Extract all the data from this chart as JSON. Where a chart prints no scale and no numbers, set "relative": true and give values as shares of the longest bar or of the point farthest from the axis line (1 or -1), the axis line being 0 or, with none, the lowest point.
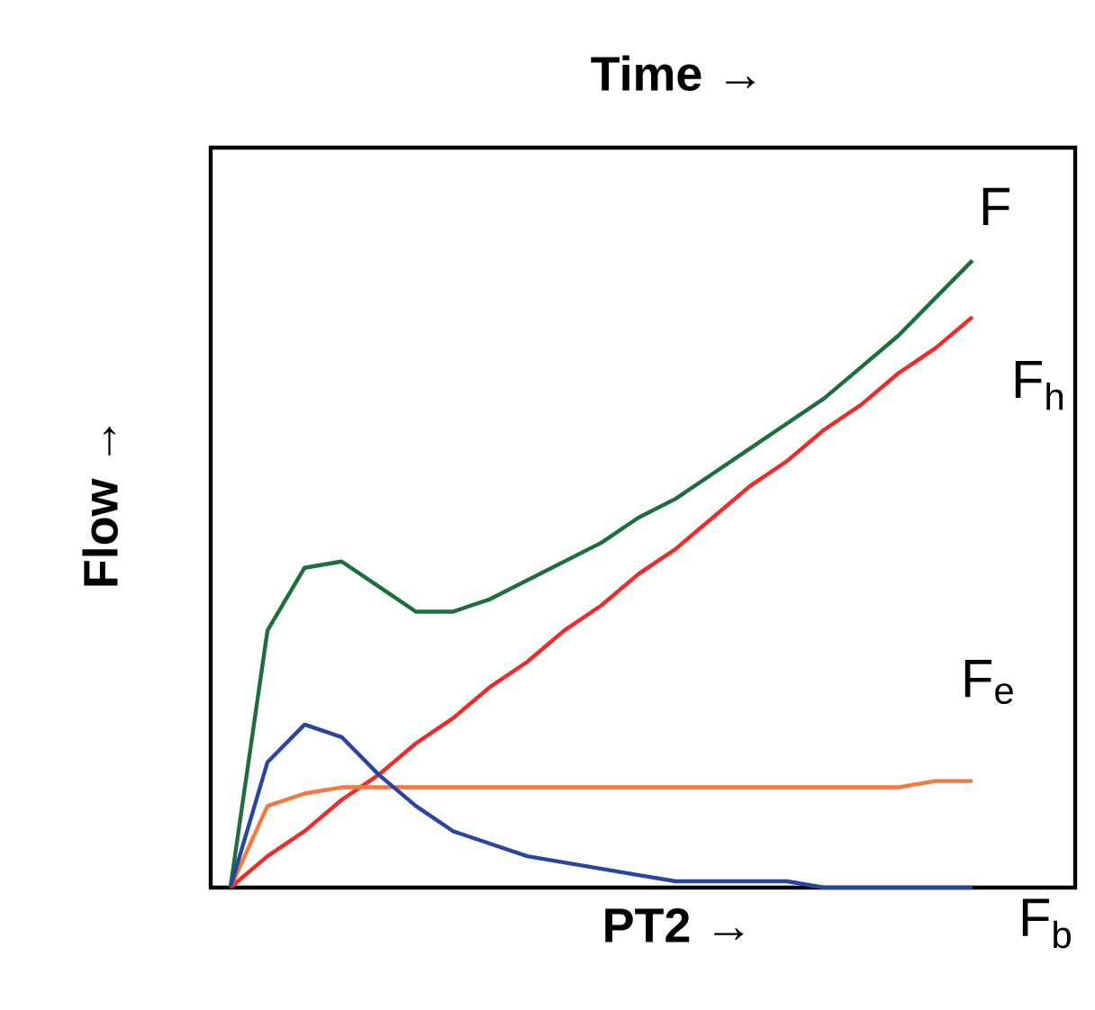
{
  "chart_data": {
    "type": "line",
    "relative": true,
    "title": "Time   →",
    "xlabel": "PT2   →",
    "ylabel": "Flow   →",
    "categories": [
      null,
      null,
      null,
      null,
      null,
      null,
      null,
      null,
      null,
      null,
      null,
      null,
      null,
      null,
      null,
      null,
      null,
      null,
      null,
      null,
      null
    ],
    "series": [
      {
        "name": "F",
        "color": "#1e6e3c",
        "values": [
          0,
          0.41,
          0.51,
          0.52,
          0.48,
          0.44,
          0.44,
          0.46,
          0.49,
          0.52,
          0.55,
          0.59,
          0.62,
          0.66,
          0.7,
          0.74,
          0.78,
          0.83,
          0.88,
          0.94,
          1
        ]
      },
      {
        "name": "F$_{h}$",
        "color": "#ee2a2a",
        "values": [
          0,
          0.05,
          0.09,
          0.14,
          0.18,
          0.23,
          0.27,
          0.32,
          0.36,
          0.41,
          0.45,
          0.5,
          0.54,
          0.59,
          0.64,
          0.68,
          0.73,
          0.77,
          0.82,
          0.86,
          0.91
        ]
      },
      {
        "name": "F$_{e}$",
        "color": "#f47840",
        "values": [
          0,
          0.13,
          0.15,
          0.16,
          0.16,
          0.16,
          0.16,
          0.16,
          0.16,
          0.16,
          0.16,
          0.16,
          0.16,
          0.16,
          0.16,
          0.16,
          0.16,
          0.16,
          0.16,
          0.17,
          0.17
        ]
      },
      {
        "name": "F$_{b}$",
        "color": "#2a45a0",
        "values": [
          0,
          0.2,
          0.26,
          0.24,
          0.18,
          0.13,
          0.09,
          0.07,
          0.05,
          0.04,
          0.03,
          0.02,
          0.01,
          0.01,
          0.01,
          0.01,
          0,
          0,
          0,
          0,
          0
        ]
      }
    ]
  }
}
